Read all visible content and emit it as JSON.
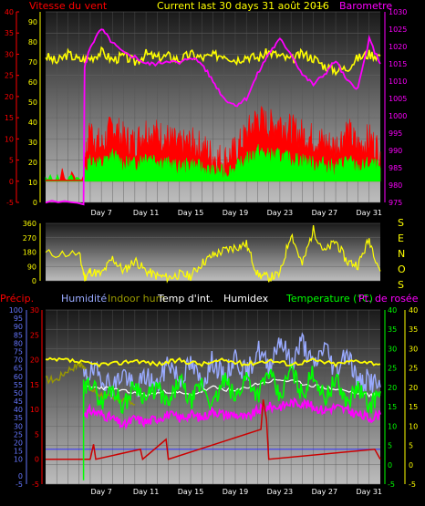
{
  "header": {
    "title": "Current last 30 days 31 août 2016",
    "separator": "---",
    "wind_label": "Vitesse du vent",
    "baro_label": "Barometre"
  },
  "colors": {
    "wind_red": "#ff0000",
    "gust_green": "#00ff00",
    "baro_magenta": "#ff00ff",
    "yellow": "#ffff00",
    "dew_magenta": "#ff00ff",
    "humidity_blue": "#99aaff",
    "indoor_hum": "#999900",
    "temp_int_white": "#ffffff",
    "temp_green": "#00ff00",
    "precip_red": "#cc0000",
    "axis_blue": "#6677ff"
  },
  "wind_dir_axis": {
    "labels": [
      "S",
      "E",
      "N",
      "O",
      "S"
    ]
  },
  "bottom_legend": {
    "precip": "Précip.",
    "humidity": "Humidité",
    "indoor_hum": "Indoor hum",
    "temp_int": "Temp d'int.",
    "humidex": "Humidex",
    "temperature": "Temperature (°C)",
    "dew": "Pt. de rosée"
  },
  "chart_data": [
    {
      "type": "line",
      "title": "Current last 30 days 31 août 2016",
      "x_ticks": [
        "Day 7",
        "Day 11",
        "Day 15",
        "Day 19",
        "Day 23",
        "Day 27",
        "Day 31"
      ],
      "x_range_days": [
        2,
        32
      ],
      "y_left": {
        "label": "Vitesse du vent",
        "range": [
          -5,
          40
        ],
        "ticks": [
          -5,
          0,
          5,
          10,
          15,
          20,
          25,
          30,
          35,
          40
        ]
      },
      "y_left_inner": {
        "range": [
          0,
          95
        ],
        "ticks": [
          0,
          10,
          20,
          30,
          40,
          50,
          60,
          70,
          80,
          90
        ]
      },
      "y_right": {
        "label": "Barometre",
        "range": [
          975,
          1030
        ],
        "ticks": [
          975,
          980,
          985,
          990,
          995,
          1000,
          1005,
          1010,
          1015,
          1020,
          1025,
          1030
        ]
      },
      "grid": true,
      "series": [
        {
          "name": "Barometre",
          "color": "#ff00ff",
          "axis": "right",
          "x": [
            2,
            5.4,
            5.5,
            6,
            7,
            8,
            9,
            10,
            11,
            12,
            13,
            14,
            15,
            16,
            17,
            18,
            19,
            20,
            21,
            22,
            23,
            24,
            25,
            26,
            27,
            28,
            29,
            30,
            31,
            32
          ],
          "values": [
            975,
            975,
            1014,
            1020,
            1025,
            1021,
            1018,
            1017,
            1015,
            1015,
            1016,
            1015,
            1017,
            1015,
            1010,
            1005,
            1003,
            1005,
            1012,
            1018,
            1022,
            1018,
            1012,
            1009,
            1012,
            1016,
            1010,
            1008,
            1022,
            1015
          ]
        },
        {
          "name": "Humidité",
          "color": "#ffff00",
          "axis": "inner",
          "x": [
            2,
            3,
            4,
            5,
            6,
            7,
            8,
            9,
            10,
            11,
            12,
            13,
            14,
            15,
            16,
            17,
            18,
            19,
            20,
            21,
            22,
            23,
            24,
            25,
            26,
            27,
            28,
            29,
            30,
            31,
            32
          ],
          "values": [
            73,
            70,
            74,
            71,
            72,
            75,
            71,
            73,
            70,
            74,
            72,
            73,
            71,
            74,
            72,
            73,
            74,
            71,
            73,
            72,
            75,
            73,
            71,
            74,
            72,
            68,
            66,
            67,
            72,
            74,
            73
          ]
        },
        {
          "name": "Vitesse du vent",
          "color": "#ff0000",
          "axis": "left",
          "x": [
            2,
            5.4,
            5.6,
            6,
            7,
            8,
            9,
            10,
            11,
            12,
            13,
            14,
            15,
            16,
            17,
            18,
            19,
            20,
            21,
            22,
            23,
            24,
            25,
            26,
            27,
            28,
            29,
            30,
            31,
            32
          ],
          "values": [
            0,
            0,
            5,
            12,
            8,
            13,
            10,
            9,
            12,
            11,
            10,
            8,
            9,
            8,
            6,
            5,
            7,
            11,
            15,
            13,
            14,
            12,
            11,
            10,
            9,
            8,
            12,
            8,
            10,
            7
          ]
        },
        {
          "name": "Rafales",
          "color": "#00ff00",
          "axis": "left",
          "x": [
            2,
            5.4,
            5.6,
            6,
            7,
            8,
            9,
            10,
            11,
            12,
            13,
            14,
            15,
            16,
            17,
            18,
            19,
            20,
            21,
            22,
            23,
            24,
            25,
            26,
            27,
            28,
            29,
            30,
            31,
            32
          ],
          "values": [
            0,
            0,
            2,
            5,
            4,
            6,
            4,
            4,
            6,
            5,
            4,
            3,
            4,
            3,
            2,
            2,
            3,
            5,
            7,
            6,
            6,
            5,
            5,
            4,
            4,
            3,
            5,
            3,
            4,
            3
          ]
        }
      ]
    },
    {
      "type": "scatter",
      "title": "",
      "x_ticks": [],
      "y_left": {
        "range": [
          0,
          360
        ],
        "ticks": [
          0,
          90,
          180,
          270,
          360
        ]
      },
      "y_right": {
        "labels": [
          "S",
          "E",
          "N",
          "O",
          "S"
        ]
      },
      "series": [
        {
          "name": "",
          "color": "#ffff00",
          "x": [
            2,
            5,
            5.5,
            6,
            7,
            8,
            9,
            10,
            11,
            12,
            13,
            14,
            15,
            16,
            17,
            18,
            19,
            20,
            21,
            22,
            23,
            24,
            25,
            26,
            27,
            28,
            29,
            30,
            31,
            32
          ],
          "values": [
            170,
            170,
            20,
            60,
            40,
            140,
            60,
            130,
            60,
            30,
            20,
            40,
            30,
            110,
            160,
            190,
            210,
            230,
            40,
            20,
            40,
            300,
            100,
            320,
            180,
            250,
            120,
            100,
            260,
            60
          ]
        }
      ]
    },
    {
      "type": "line",
      "title": "",
      "x_ticks": [
        "Day 7",
        "Day 11",
        "Day 15",
        "Day 19",
        "Day 23",
        "Day 27",
        "Day 31"
      ],
      "x_range_days": [
        2,
        32
      ],
      "y_left_outer": {
        "label": "Précip.",
        "range": [
          -5,
          100
        ],
        "ticks": [
          -5,
          0,
          10,
          15,
          20,
          25,
          30,
          35,
          40,
          45,
          50,
          55,
          60,
          65,
          70,
          75,
          80,
          85,
          90,
          95,
          100
        ]
      },
      "y_left_inner": {
        "range": [
          -5,
          30
        ],
        "ticks": [
          -5,
          0,
          5,
          10,
          15,
          20,
          25,
          30
        ]
      },
      "y_right_inner": {
        "range": [
          -5,
          40
        ],
        "ticks": [
          -5,
          0,
          5,
          10,
          15,
          20,
          25,
          30,
          35,
          40
        ]
      },
      "y_right_outer": {
        "range": [
          -5,
          40
        ],
        "ticks": [
          -5,
          0,
          5,
          10,
          15,
          20,
          25,
          30,
          35,
          40
        ]
      },
      "grid": true,
      "series": [
        {
          "name": "Humidité",
          "color": "#ffff00",
          "x": [
            2,
            4,
            6,
            8,
            10,
            12,
            14,
            16,
            18,
            20,
            22,
            24,
            26,
            28,
            30,
            32
          ],
          "values": [
            27,
            27,
            26,
            26,
            27,
            26,
            27,
            26,
            27,
            26,
            27,
            26,
            27,
            26,
            27,
            26
          ]
        },
        {
          "name": "Humidex",
          "color": "#99aaff",
          "x": [
            5.4,
            6,
            7,
            8,
            9,
            10,
            11,
            12,
            13,
            14,
            15,
            16,
            17,
            18,
            19,
            20,
            21,
            22,
            23,
            24,
            25,
            26,
            27,
            28,
            29,
            30,
            31,
            32
          ],
          "values": [
            22,
            24,
            23,
            20,
            24,
            19,
            23,
            20,
            27,
            22,
            26,
            21,
            27,
            22,
            28,
            23,
            30,
            25,
            33,
            26,
            32,
            25,
            31,
            24,
            30,
            21,
            22,
            20
          ]
        },
        {
          "name": "Temperature (°C)",
          "color": "#00ff00",
          "x": [
            5.4,
            6,
            7,
            8,
            9,
            10,
            11,
            12,
            13,
            14,
            15,
            16,
            17,
            18,
            19,
            20,
            21,
            22,
            23,
            24,
            25,
            26,
            27,
            28,
            29,
            30,
            31,
            32
          ],
          "values": [
            18,
            22,
            16,
            20,
            15,
            21,
            17,
            20,
            15,
            22,
            16,
            21,
            15,
            22,
            17,
            23,
            18,
            24,
            17,
            25,
            18,
            24,
            17,
            22,
            16,
            20,
            15,
            19
          ]
        },
        {
          "name": "Pt. de rosée",
          "color": "#ff00ff",
          "x": [
            5.4,
            6,
            7,
            8,
            9,
            10,
            11,
            12,
            13,
            14,
            15,
            16,
            17,
            18,
            19,
            20,
            21,
            22,
            23,
            24,
            25,
            26,
            27,
            28,
            29,
            30,
            31,
            32
          ],
          "values": [
            13,
            14,
            13,
            12,
            10,
            12,
            11,
            12,
            13,
            12,
            13,
            12,
            14,
            13,
            13,
            12,
            14,
            15,
            15,
            16,
            16,
            15,
            14,
            15,
            14,
            13,
            12,
            13
          ]
        },
        {
          "name": "Temp d'int.",
          "color": "#ffffff",
          "x": [
            5.4,
            7,
            9,
            11,
            13,
            15,
            17,
            19,
            21,
            23,
            25,
            27,
            29,
            31,
            32
          ],
          "values": [
            20,
            20,
            19,
            18,
            19,
            18,
            20,
            19,
            21,
            22,
            21,
            20,
            19,
            18,
            18
          ]
        },
        {
          "name": "Indoor hum",
          "color": "#999900",
          "x": [
            2,
            3,
            4,
            5,
            5.4,
            6,
            7,
            8,
            9,
            10
          ],
          "values": [
            16,
            16,
            18,
            19,
            19,
            14,
            13,
            12,
            12,
            11
          ]
        },
        {
          "name": "Précip.",
          "color": "#cc0000",
          "x": [
            2,
            6,
            6.3,
            6.5,
            10.5,
            10.7,
            12.8,
            13,
            21.3,
            21.5,
            21.8,
            22,
            31.5,
            32
          ],
          "values": [
            0,
            0,
            3,
            0,
            2,
            0,
            4,
            0,
            6,
            12,
            8,
            0,
            2,
            0
          ]
        }
      ]
    }
  ]
}
